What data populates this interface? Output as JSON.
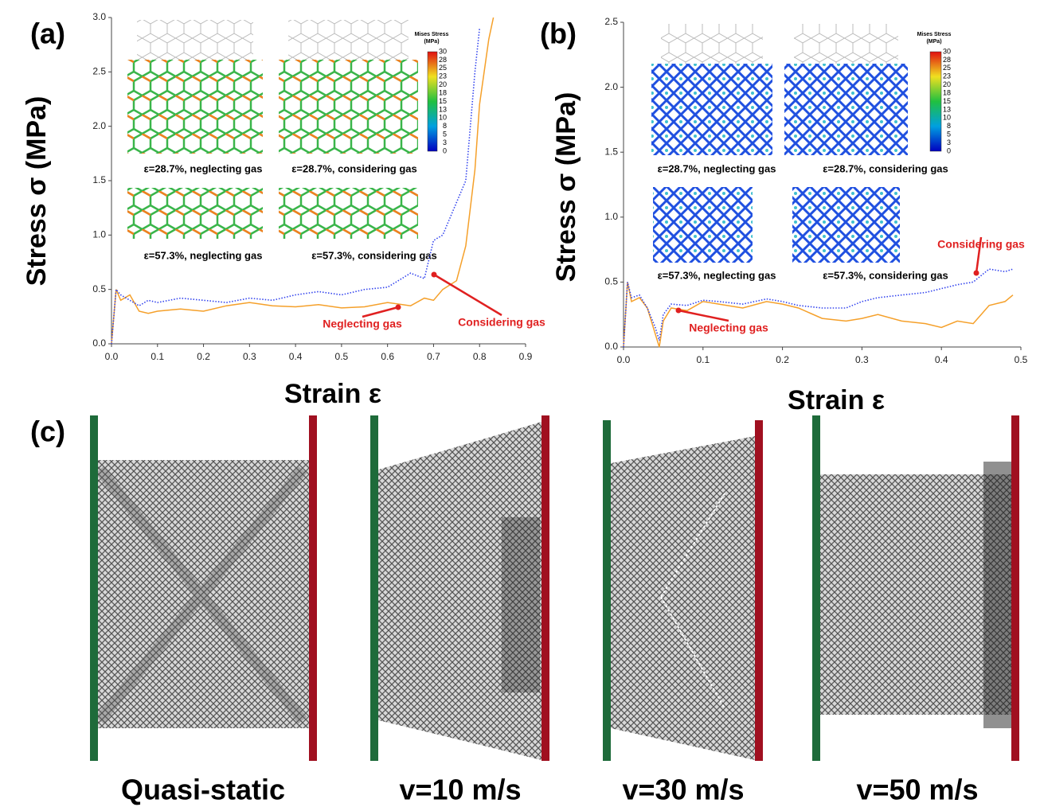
{
  "chart_data": [
    {
      "type": "line",
      "panel_label": "(a)",
      "xlabel": "Strain ε",
      "ylabel": "Stress σ (MPa)",
      "x": [
        0,
        0.01,
        0.02,
        0.04,
        0.06,
        0.08,
        0.1,
        0.15,
        0.2,
        0.25,
        0.3,
        0.35,
        0.4,
        0.45,
        0.5,
        0.55,
        0.6,
        0.65,
        0.68,
        0.7,
        0.72,
        0.75,
        0.77,
        0.79,
        0.8,
        0.82,
        0.83
      ],
      "series": [
        {
          "name": "Neglecting gas",
          "color": "#f5a02a",
          "style": "solid",
          "values": [
            0,
            0.5,
            0.4,
            0.45,
            0.3,
            0.28,
            0.3,
            0.32,
            0.3,
            0.35,
            0.38,
            0.35,
            0.34,
            0.36,
            0.33,
            0.34,
            0.38,
            0.35,
            0.42,
            0.4,
            0.5,
            0.58,
            0.9,
            1.6,
            2.2,
            2.8,
            3.0
          ]
        },
        {
          "name": "Considering gas",
          "color": "#3344ee",
          "style": "dotted",
          "values": [
            0,
            0.5,
            0.45,
            0.4,
            0.35,
            0.4,
            0.38,
            0.42,
            0.4,
            0.38,
            0.42,
            0.4,
            0.45,
            0.48,
            0.45,
            0.5,
            0.52,
            0.65,
            0.6,
            0.95,
            1.0,
            1.3,
            1.5,
            2.5,
            2.9,
            null,
            null
          ]
        }
      ],
      "xlim": [
        0,
        0.9
      ],
      "xticks": [
        {
          "value": 0,
          "label": "0.0"
        },
        0.1,
        0.2,
        0.3,
        0.4,
        0.5,
        0.6,
        0.7,
        0.8,
        0.9
      ],
      "ylim": [
        0,
        3
      ],
      "yticks": [
        {
          "value": 0,
          "label": "0.0"
        },
        0.5,
        {
          "value": 1,
          "label": "1.0"
        },
        1.5,
        {
          "value": 2,
          "label": "2.0"
        },
        2.5,
        {
          "value": 3,
          "label": "3.0"
        }
      ],
      "inset_captions": [
        "ε=28.7%, neglecting gas",
        "ε=28.7%, considering gas",
        "ε=57.3%, neglecting gas",
        "ε=57.3%, considering gas"
      ],
      "colorbar": {
        "title": [
          "Mises Stress",
          "(MPa)"
        ],
        "ticks": [
          30,
          28,
          25,
          23,
          20,
          18,
          15,
          13,
          10,
          8,
          5,
          3,
          0
        ]
      }
    },
    {
      "type": "line",
      "panel_label": "(b)",
      "xlabel": "Strain ε",
      "ylabel": "Stress σ (MPa)",
      "x": [
        0,
        0.005,
        0.01,
        0.02,
        0.03,
        0.04,
        0.045,
        0.05,
        0.06,
        0.08,
        0.1,
        0.12,
        0.15,
        0.18,
        0.2,
        0.22,
        0.25,
        0.28,
        0.3,
        0.32,
        0.35,
        0.38,
        0.4,
        0.42,
        0.44,
        0.45,
        0.46,
        0.48,
        0.49
      ],
      "series": [
        {
          "name": "Neglecting gas",
          "color": "#f5a02a",
          "style": "solid",
          "values": [
            0,
            0.5,
            0.35,
            0.38,
            0.3,
            0.1,
            0.0,
            0.2,
            0.3,
            0.28,
            0.35,
            0.33,
            0.3,
            0.35,
            0.33,
            0.3,
            0.22,
            0.2,
            0.22,
            0.25,
            0.2,
            0.18,
            0.15,
            0.2,
            0.18,
            0.25,
            0.32,
            0.35,
            0.4
          ]
        },
        {
          "name": "Considering gas",
          "color": "#3344ee",
          "style": "dotted",
          "values": [
            0,
            0.5,
            0.38,
            0.4,
            0.3,
            0.15,
            0.05,
            0.25,
            0.33,
            0.32,
            0.36,
            0.35,
            0.33,
            0.37,
            0.35,
            0.32,
            0.3,
            0.3,
            0.35,
            0.38,
            0.4,
            0.42,
            0.45,
            0.48,
            0.5,
            0.55,
            0.6,
            0.58,
            0.6
          ]
        }
      ],
      "xlim": [
        0,
        0.5
      ],
      "xticks": [
        {
          "value": 0,
          "label": "0.0"
        },
        0.1,
        0.2,
        0.3,
        0.4,
        0.5
      ],
      "ylim": [
        0,
        2.5
      ],
      "yticks": [
        {
          "value": 0,
          "label": "0.0"
        },
        0.5,
        {
          "value": 1,
          "label": "1.0"
        },
        1.5,
        {
          "value": 2,
          "label": "2.0"
        },
        2.5
      ],
      "inset_captions": [
        "ε=28.7%, neglecting gas",
        "ε=28.7%, considering gas",
        "ε=57.3%, neglecting gas",
        "ε=57.3%, considering gas"
      ],
      "colorbar": {
        "title": [
          "Mises Stress",
          "(MPa)"
        ],
        "ticks": [
          30,
          28,
          25,
          23,
          20,
          18,
          15,
          13,
          10,
          8,
          5,
          3,
          0
        ]
      }
    }
  ],
  "panel_c": {
    "label": "(c)",
    "captions": [
      "Quasi-static",
      "v=10 m/s",
      "v=30 m/s",
      "v=50 m/s"
    ]
  }
}
